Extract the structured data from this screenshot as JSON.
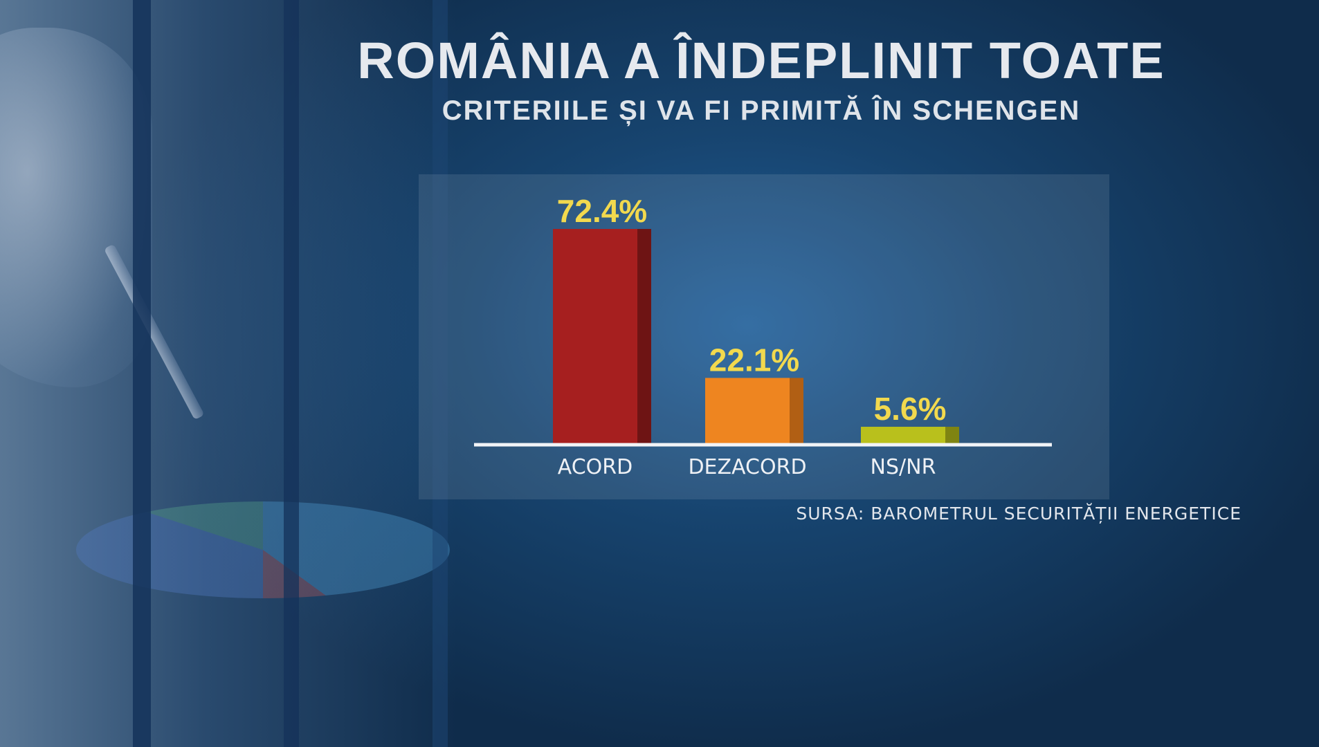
{
  "title": "ROMÂNIA A ÎNDEPLINIT TOATE",
  "subtitle": "CRITERIILE ȘI VA FI PRIMITĂ ÎN SCHENGEN",
  "source": "SURSA: BAROMETRUL SECURITĂȚII ENERGETICE",
  "chart_data": {
    "type": "bar",
    "categories": [
      "ACORD",
      "DEZACORD",
      "NS/NR"
    ],
    "values": [
      72.4,
      22.1,
      5.6
    ],
    "value_labels": [
      "72.4%",
      "22.1%",
      "5.6%"
    ],
    "colors": [
      "#a61f1f",
      "#ee8520",
      "#b9c01c"
    ],
    "side_colors": [
      "#6e1414",
      "#b15f14",
      "#7f8412"
    ],
    "value_label_color": "#f2d94e",
    "ylim": [
      0,
      100
    ],
    "grid": false,
    "legend": "none"
  }
}
